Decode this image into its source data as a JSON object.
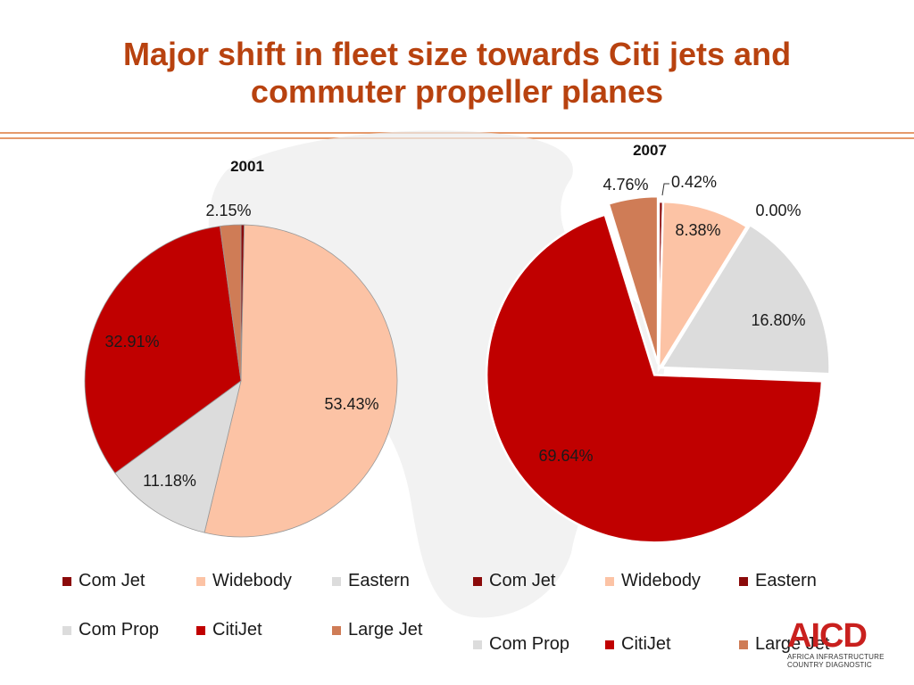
{
  "title_line1": "Major shift in fleet size towards Citi jets and",
  "title_line2": "commuter propeller planes",
  "colors": {
    "Com Jet": "#8b0a0a",
    "Widebody": "#fcc3a5",
    "Eastern": "#dcdcdc",
    "Eastern2007": "#8b0a0a",
    "Com Prop": "#dcdcdc",
    "CitiJet": "#c00000",
    "Large Jet": "#cf7c56",
    "title": "#b8420f"
  },
  "chart_data": [
    {
      "type": "pie",
      "title": "2001",
      "slices": [
        {
          "name": "Com Jet",
          "value": 0.33,
          "label": ""
        },
        {
          "name": "Widebody",
          "value": 53.43,
          "label": "53.43%"
        },
        {
          "name": "Eastern",
          "value": 11.18,
          "label": "11.18%"
        },
        {
          "name": "CitiJet",
          "value": 32.91,
          "label": "32.91%"
        },
        {
          "name": "Large Jet",
          "value": 2.15,
          "label": "2.15%"
        }
      ],
      "legend": [
        "Com Jet",
        "Widebody",
        "Eastern",
        "Com Prop",
        "CitiJet",
        "Large Jet"
      ]
    },
    {
      "type": "pie",
      "title": "2007",
      "slices": [
        {
          "name": "Com Jet",
          "value": 0.42,
          "label": "0.42%"
        },
        {
          "name": "Widebody",
          "value": 8.38,
          "label": "8.38%"
        },
        {
          "name": "Eastern",
          "value": 0.0,
          "label": "0.00%"
        },
        {
          "name": "Com Prop",
          "value": 16.8,
          "label": "16.80%"
        },
        {
          "name": "CitiJet",
          "value": 69.64,
          "label": "69.64%"
        },
        {
          "name": "Large Jet",
          "value": 4.76,
          "label": "4.76%"
        }
      ],
      "legend": [
        "Com Jet",
        "Widebody",
        "Eastern",
        "Com Prop",
        "CitiJet",
        "Large Jet"
      ]
    }
  ],
  "logo": {
    "name": "AICD",
    "line1": "AFRICA INFRASTRUCTURE",
    "line2": "COUNTRY DIAGNOSTIC"
  }
}
